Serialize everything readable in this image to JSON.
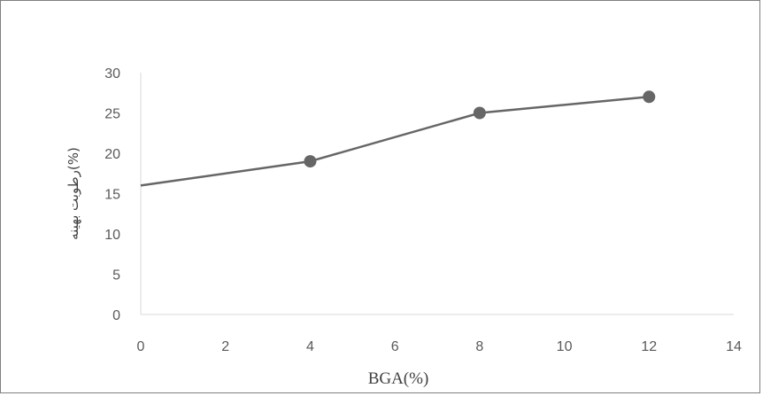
{
  "chart_data": {
    "type": "line",
    "title": "",
    "xlabel": "BGA(%)",
    "ylabel": "رطوبت بهینه(%)",
    "xlim": [
      0,
      14
    ],
    "ylim": [
      0,
      30
    ],
    "x_ticks": [
      "0",
      "2",
      "4",
      "6",
      "8",
      "10",
      "12",
      "14"
    ],
    "y_ticks": [
      "0",
      "5",
      "10",
      "15",
      "20",
      "25",
      "30"
    ],
    "grid": false,
    "legend": "none",
    "line_color": "#666666",
    "marker_color": "#666666",
    "series": [
      {
        "x": [
          0,
          4,
          8,
          12
        ],
        "y": [
          16,
          19,
          25,
          27
        ],
        "markers": [
          false,
          true,
          true,
          true
        ]
      }
    ]
  }
}
